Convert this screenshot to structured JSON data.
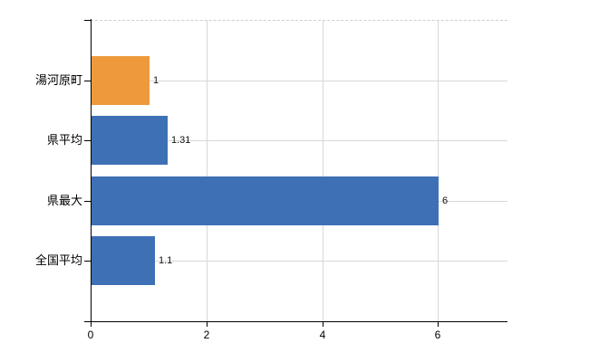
{
  "chart_data": {
    "type": "bar",
    "orientation": "horizontal",
    "title": "",
    "categories": [
      "湯河原町",
      "県平均",
      "県最大",
      "全国平均"
    ],
    "values": [
      1,
      1.31,
      6,
      1.1
    ],
    "value_labels": [
      "1",
      "1.31",
      "6",
      "1.1"
    ],
    "bar_colors": [
      "#ee9a3c",
      "#3e70b5",
      "#3e70b5",
      "#3e70b5"
    ],
    "x_ticks": [
      0,
      2,
      4,
      6
    ],
    "x_tick_labels": [
      "0",
      "2",
      "4",
      "6"
    ],
    "xlim": [
      0,
      7.2
    ],
    "grid": true,
    "legend": false,
    "colors": {
      "highlight_bar": "#ee9a3c",
      "default_bar": "#3e70b5",
      "grid": "#d8d8d8",
      "axis": "#000000",
      "text": "#000000",
      "background": "#ffffff"
    }
  }
}
